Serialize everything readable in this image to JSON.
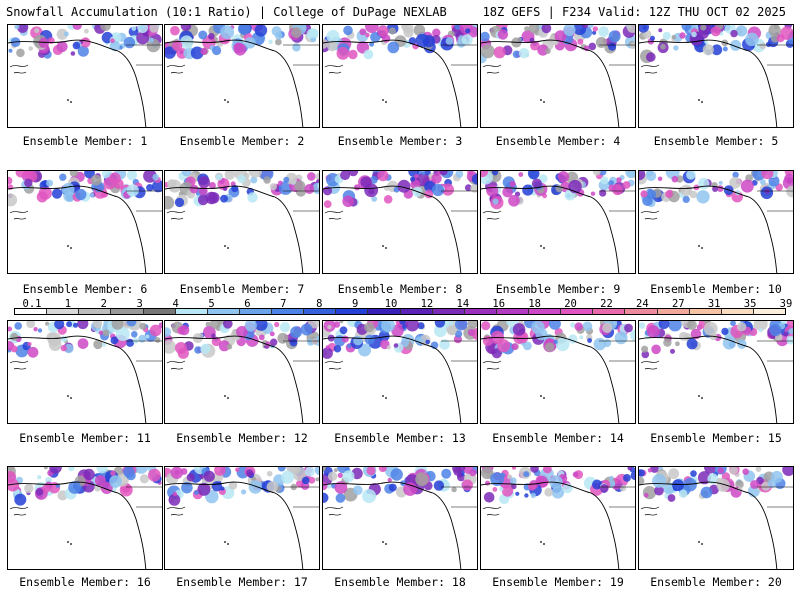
{
  "header": {
    "left_title": "Snowfall Accumulation (10:1 Ratio) | College of DuPage NEXLAB",
    "right_title": "18Z GEFS | F234 Valid: 12Z THU OCT 02 2025"
  },
  "panels": [
    {
      "label": "Ensemble Member: 1"
    },
    {
      "label": "Ensemble Member: 2"
    },
    {
      "label": "Ensemble Member: 3"
    },
    {
      "label": "Ensemble Member: 4"
    },
    {
      "label": "Ensemble Member: 5"
    },
    {
      "label": "Ensemble Member: 6"
    },
    {
      "label": "Ensemble Member: 7"
    },
    {
      "label": "Ensemble Member: 8"
    },
    {
      "label": "Ensemble Member: 9"
    },
    {
      "label": "Ensemble Member: 10"
    },
    {
      "label": "Ensemble Member: 11"
    },
    {
      "label": "Ensemble Member: 12"
    },
    {
      "label": "Ensemble Member: 13"
    },
    {
      "label": "Ensemble Member: 14"
    },
    {
      "label": "Ensemble Member: 15"
    },
    {
      "label": "Ensemble Member: 16"
    },
    {
      "label": "Ensemble Member: 17"
    },
    {
      "label": "Ensemble Member: 18"
    },
    {
      "label": "Ensemble Member: 19"
    },
    {
      "label": "Ensemble Member: 20"
    }
  ],
  "colorbar": {
    "labels": [
      "0.1",
      "1",
      "2",
      "3",
      "4",
      "5",
      "6",
      "7",
      "8",
      "9",
      "10",
      "12",
      "14",
      "16",
      "18",
      "20",
      "22",
      "24",
      "27",
      "31",
      "35",
      "39"
    ],
    "colors": [
      "#ffffff",
      "#d9d9d9",
      "#bdbdbd",
      "#9a9a9a",
      "#777777",
      "#b7e7f5",
      "#8fc4ef",
      "#6aa3ea",
      "#4d82e6",
      "#3460dd",
      "#2440d6",
      "#3a1fb8",
      "#5a22b6",
      "#7b2ab8",
      "#9a30bd",
      "#b43ac2",
      "#cd48c6",
      "#e055c0",
      "#e86aac",
      "#ee8a9e",
      "#f2a89a",
      "#f6c3a4",
      "#f9dcbf",
      "#fbeedd"
    ]
  }
}
